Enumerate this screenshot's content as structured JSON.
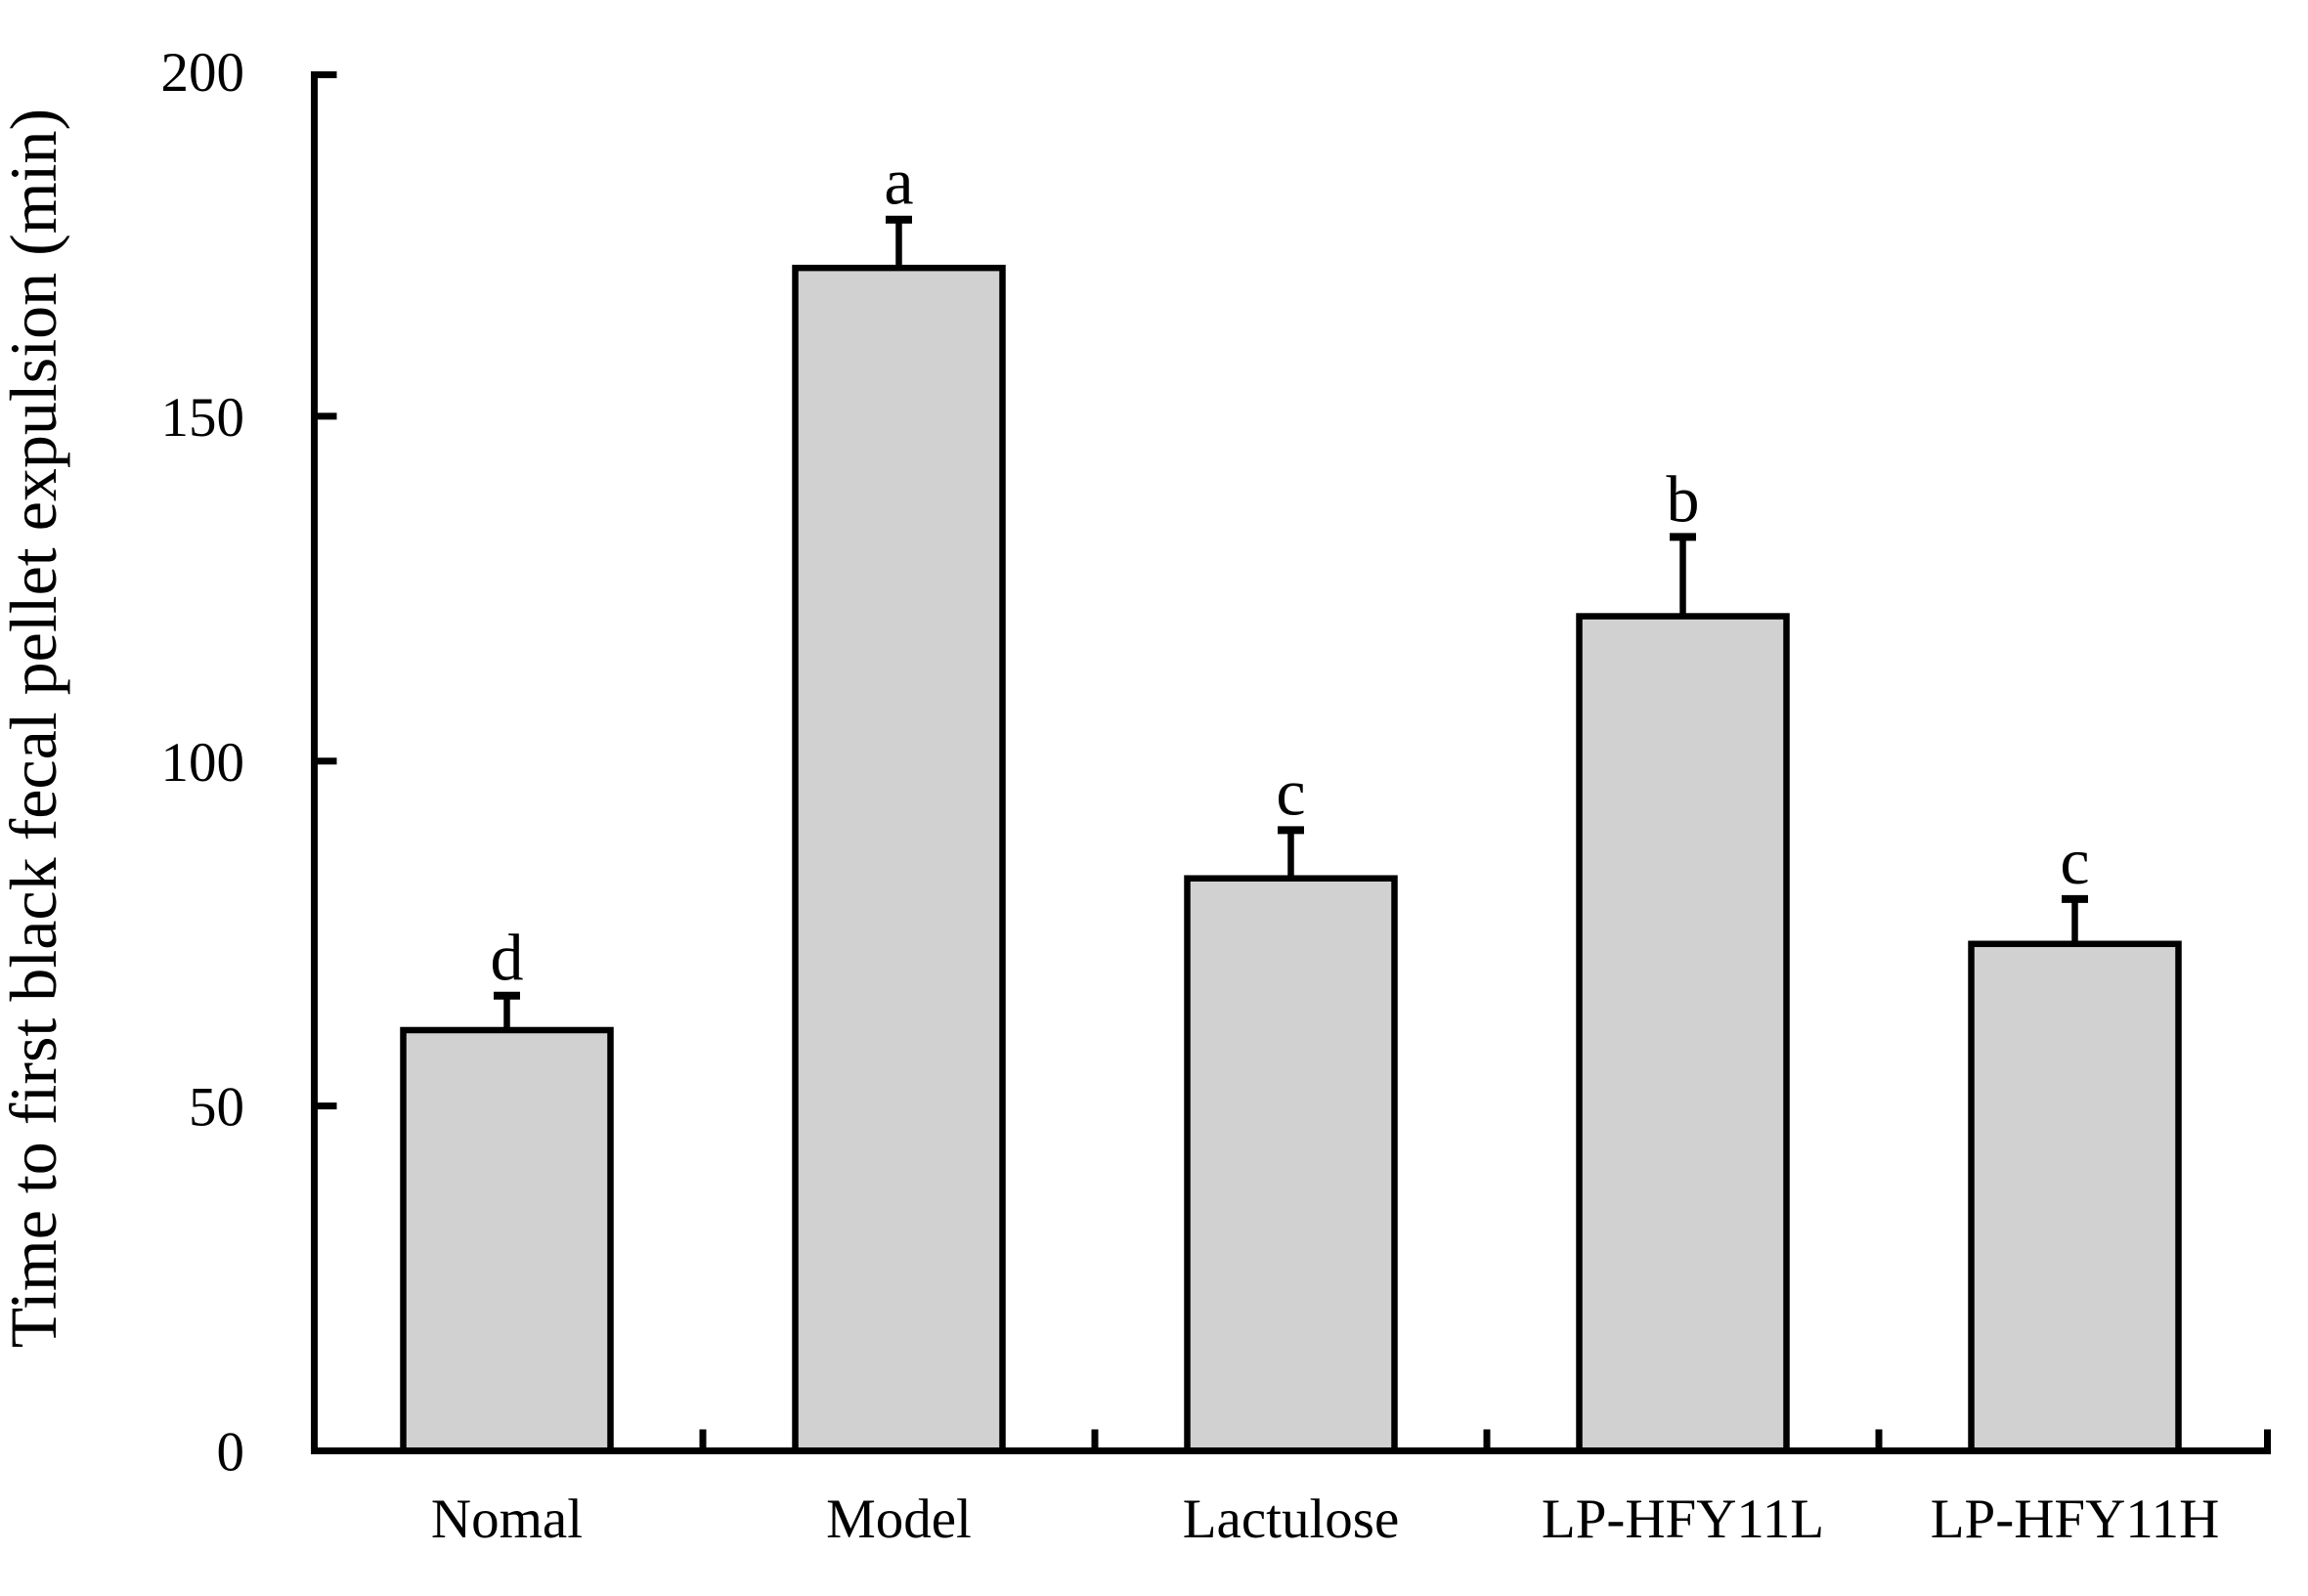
{
  "figure": {
    "background": "#ffffff",
    "description": "Bar chart of time to first black fecal pellet expulsion for five mouse groups"
  },
  "chart_data": {
    "type": "bar",
    "title": "",
    "xlabel": "",
    "ylabel": "Time to first black fecal pellet expulsion (min)",
    "categories": [
      "Nomal",
      "Model",
      "Lactulose",
      "LP-HFY11L",
      "LP-HFY11H"
    ],
    "series": [
      {
        "name": "Time to first black fecal pellet expulsion (min)",
        "values": [
          61,
          171.5,
          83,
          121,
          73.5
        ],
        "errors_plus": [
          5,
          7,
          7,
          11.5,
          6.5
        ],
        "sig_letters": [
          "d",
          "a",
          "c",
          "b",
          "c"
        ]
      }
    ],
    "ylim": [
      0,
      200
    ],
    "yticks": [
      0,
      50,
      100,
      150,
      200
    ],
    "grid": false,
    "legend_position": "none",
    "bar_fill_color": "#d1d1d1",
    "bar_stroke_color": "#000000",
    "axis_color": "#000000"
  }
}
